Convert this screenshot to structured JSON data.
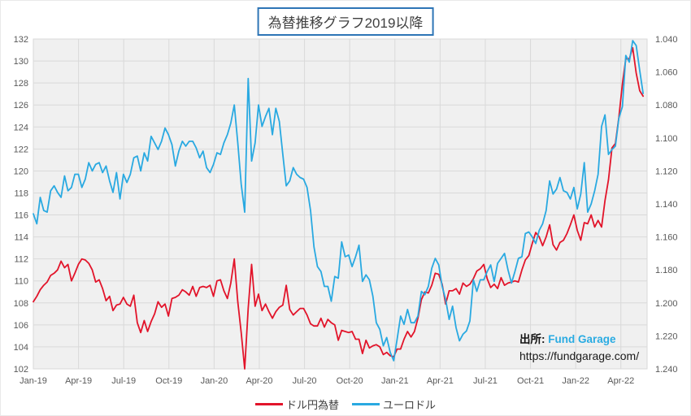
{
  "title": "為替推移グラフ2019以降",
  "source": {
    "prefix": "出所:",
    "name": "Fund Garage",
    "url": "https://fundgarage.com/"
  },
  "legend": [
    {
      "label": "ドル円為替",
      "color": "#e2142a"
    },
    {
      "label": "ユーロドル",
      "color": "#29a9e1"
    }
  ],
  "colors": {
    "plot_bg": "#f0f0f0",
    "grid": "#d9d9d9",
    "tick_text": "#595959",
    "title_border": "#2e75b6",
    "usdjpy": "#e2142a",
    "eurusd": "#29a9e1",
    "source_name": "#29abe2"
  },
  "chart_data": {
    "type": "line",
    "title": "為替推移グラフ2019以降",
    "grid": true,
    "legend_position": "bottom",
    "x_axis": {
      "tick_labels": [
        "Jan-19",
        "Apr-19",
        "Jul-19",
        "Oct-19",
        "Jan-20",
        "Apr-20",
        "Jul-20",
        "Oct-20",
        "Jan-21",
        "Apr-21",
        "Jul-21",
        "Oct-21",
        "Jan-22",
        "Apr-22"
      ],
      "start": "2019-01",
      "end": "2022-05",
      "frequency": "weekly",
      "span_days": 1240
    },
    "left_axis": {
      "label_series": "ドル円為替",
      "min": 102,
      "max": 132,
      "step": 2
    },
    "right_axis": {
      "label_series": "ユーロドル",
      "min": 1.04,
      "max": 1.24,
      "step": 0.02,
      "inverted": true,
      "decimals": 3
    },
    "series": [
      {
        "name": "ドル円為替",
        "axis": "left",
        "color": "#e2142a",
        "values": [
          108.1,
          108.6,
          109.2,
          109.6,
          109.9,
          110.5,
          110.7,
          111.0,
          111.8,
          111.2,
          111.5,
          110.0,
          110.7,
          111.5,
          112.0,
          111.9,
          111.6,
          111.0,
          109.9,
          110.1,
          109.3,
          108.2,
          108.6,
          107.3,
          107.8,
          107.9,
          108.5,
          107.9,
          107.7,
          108.7,
          106.2,
          105.3,
          106.4,
          105.4,
          106.3,
          107.0,
          108.1,
          107.6,
          107.9,
          106.8,
          108.4,
          108.5,
          108.7,
          109.2,
          109.0,
          108.7,
          109.5,
          108.6,
          109.4,
          109.5,
          109.4,
          109.6,
          108.6,
          110.0,
          110.1,
          109.1,
          108.4,
          109.8,
          112.0,
          108.1,
          105.3,
          102.0,
          107.5,
          111.5,
          107.7,
          108.8,
          107.3,
          107.9,
          107.2,
          106.6,
          107.2,
          107.6,
          107.8,
          109.6,
          107.4,
          106.9,
          107.2,
          107.5,
          107.5,
          106.9,
          106.1,
          105.9,
          105.9,
          106.6,
          105.8,
          106.5,
          106.2,
          106.0,
          104.6,
          105.5,
          105.4,
          105.3,
          105.4,
          104.7,
          104.7,
          103.4,
          104.6,
          103.9,
          104.1,
          104.2,
          104.0,
          103.3,
          103.5,
          103.2,
          103.1,
          103.8,
          103.8,
          104.7,
          105.4,
          104.9,
          105.4,
          106.6,
          108.3,
          109.0,
          108.9,
          109.6,
          110.7,
          110.6,
          109.7,
          107.9,
          109.1,
          109.1,
          109.3,
          108.8,
          109.8,
          109.5,
          109.7,
          110.2,
          110.9,
          111.1,
          111.5,
          110.2,
          109.4,
          109.7,
          109.3,
          110.3,
          109.6,
          109.8,
          109.9,
          110.0,
          109.9,
          111.0,
          111.9,
          112.3,
          113.4,
          114.4,
          114.0,
          113.2,
          114.0,
          115.1,
          113.3,
          112.8,
          113.5,
          113.7,
          114.3,
          115.1,
          116.0,
          114.6,
          113.7,
          115.3,
          115.2,
          116.0,
          114.9,
          115.5,
          114.9,
          117.3,
          119.2,
          122.1,
          122.5,
          124.9,
          127.9,
          130.2,
          130.2,
          131.2,
          128.9,
          127.3,
          126.8
        ]
      },
      {
        "name": "ユーロドル",
        "axis": "right",
        "color": "#29a9e1",
        "values": [
          1.146,
          1.152,
          1.136,
          1.144,
          1.145,
          1.132,
          1.129,
          1.133,
          1.136,
          1.123,
          1.132,
          1.13,
          1.122,
          1.122,
          1.13,
          1.125,
          1.115,
          1.12,
          1.116,
          1.115,
          1.121,
          1.117,
          1.126,
          1.133,
          1.121,
          1.137,
          1.122,
          1.127,
          1.122,
          1.112,
          1.111,
          1.12,
          1.109,
          1.114,
          1.099,
          1.103,
          1.107,
          1.102,
          1.094,
          1.098,
          1.104,
          1.117,
          1.108,
          1.102,
          1.105,
          1.102,
          1.102,
          1.106,
          1.112,
          1.108,
          1.118,
          1.121,
          1.116,
          1.109,
          1.11,
          1.103,
          1.098,
          1.091,
          1.08,
          1.103,
          1.128,
          1.145,
          1.064,
          1.114,
          1.103,
          1.08,
          1.093,
          1.087,
          1.082,
          1.098,
          1.082,
          1.09,
          1.11,
          1.129,
          1.126,
          1.118,
          1.122,
          1.124,
          1.125,
          1.13,
          1.144,
          1.166,
          1.178,
          1.181,
          1.19,
          1.19,
          1.199,
          1.184,
          1.185,
          1.163,
          1.172,
          1.171,
          1.178,
          1.172,
          1.165,
          1.187,
          1.183,
          1.186,
          1.196,
          1.212,
          1.216,
          1.226,
          1.221,
          1.23,
          1.235,
          1.222,
          1.208,
          1.213,
          1.204,
          1.212,
          1.212,
          1.208,
          1.193,
          1.195,
          1.19,
          1.179,
          1.173,
          1.177,
          1.19,
          1.198,
          1.21,
          1.202,
          1.215,
          1.223,
          1.219,
          1.217,
          1.211,
          1.186,
          1.193,
          1.186,
          1.186,
          1.181,
          1.177,
          1.187,
          1.176,
          1.173,
          1.17,
          1.18,
          1.188,
          1.181,
          1.173,
          1.172,
          1.158,
          1.157,
          1.16,
          1.164,
          1.156,
          1.152,
          1.144,
          1.126,
          1.134,
          1.131,
          1.124,
          1.132,
          1.133,
          1.137,
          1.13,
          1.143,
          1.134,
          1.115,
          1.145,
          1.14,
          1.132,
          1.122,
          1.093,
          1.086,
          1.11,
          1.107,
          1.105,
          1.088,
          1.081,
          1.05,
          1.054,
          1.041,
          1.044,
          1.059,
          1.073
        ]
      }
    ]
  }
}
